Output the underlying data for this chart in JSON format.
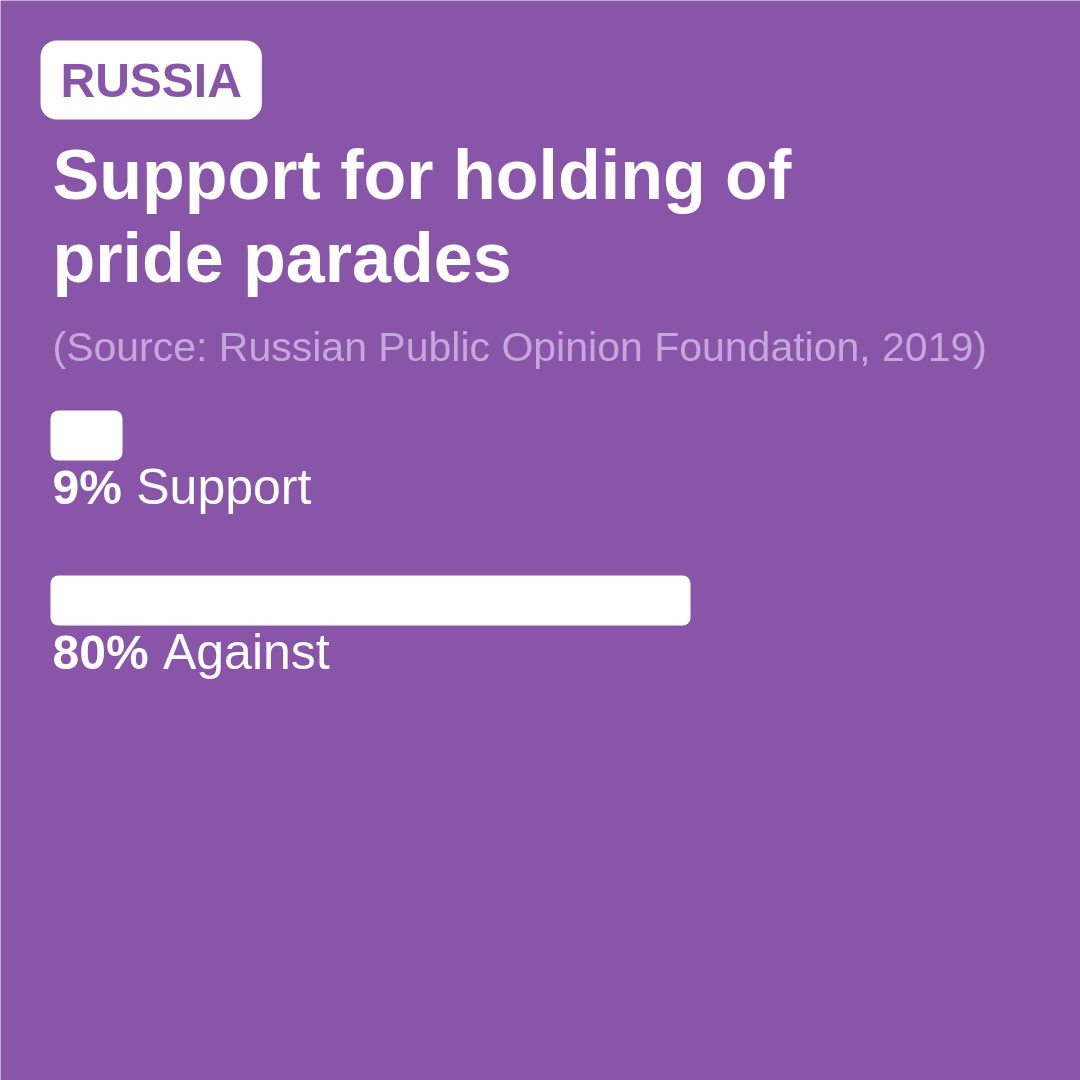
{
  "chart_data": {
    "type": "bar",
    "orientation": "horizontal",
    "title": "Support for holding of pride parades",
    "annotations": [
      "RUSSIA",
      "(Source: Russian Public Opinion Foundation, 2019)"
    ],
    "categories": [
      "Support",
      "Against"
    ],
    "values": [
      9,
      80
    ],
    "value_labels": [
      "9%",
      "80%"
    ],
    "color": "#ffffff",
    "grid": false,
    "tick_labels": false
  }
}
